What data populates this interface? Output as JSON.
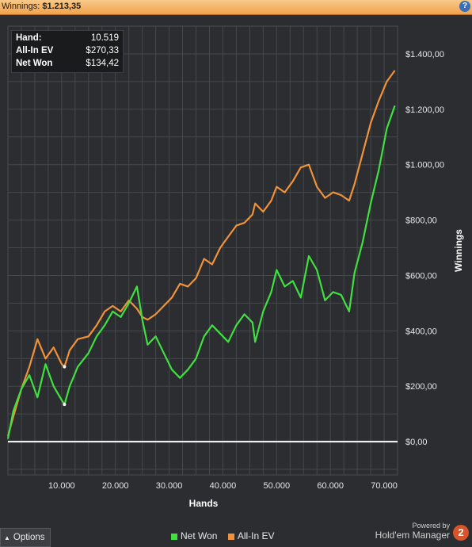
{
  "header": {
    "title_label": "Winnings:",
    "title_value": "$1.213,35",
    "help_icon": "help-icon"
  },
  "tooltip": {
    "rows": [
      {
        "key": "Hand:",
        "value": "10.519"
      },
      {
        "key": "All-In EV",
        "value": "$270,33"
      },
      {
        "key": "Net Won",
        "value": "$134,42"
      }
    ]
  },
  "footer": {
    "options_label": "Options",
    "powered_by": "Powered by",
    "brand_name": "Hold'em Manager",
    "brand_badge": "2"
  },
  "colors": {
    "background": "#2b2d30",
    "grid": "#45484c",
    "net_won": "#3fe03f",
    "all_in_ev": "#f0923a",
    "zero_line": "#ffffff",
    "text": "#e6e6e6"
  },
  "chart_data": {
    "type": "line",
    "xlabel": "Hands",
    "ylabel": "Winnings",
    "xlim": [
      0,
      72500
    ],
    "ylim": [
      -120,
      1500
    ],
    "x_ticks": [
      10000,
      20000,
      30000,
      40000,
      50000,
      60000,
      70000
    ],
    "x_tick_labels": [
      "10.000",
      "20.000",
      "30.000",
      "40.000",
      "50.000",
      "60.000",
      "70.000"
    ],
    "y_ticks": [
      0,
      200,
      400,
      600,
      800,
      1000,
      1200,
      1400
    ],
    "y_tick_labels": [
      "$0,00",
      "$200,00",
      "$400,00",
      "$600,00",
      "$800,00",
      "$1.000,00",
      "$1.200,00",
      "$1.400,00"
    ],
    "grid": true,
    "legend_position": "bottom-center",
    "series": [
      {
        "name": "Net Won",
        "x": [
          0,
          1000,
          2500,
          4000,
          5500,
          7000,
          8500,
          10000,
          10519,
          11500,
          13000,
          15000,
          16500,
          18000,
          19500,
          21000,
          22500,
          24000,
          25000,
          26000,
          27500,
          29000,
          30500,
          32000,
          33500,
          35000,
          36500,
          38000,
          39500,
          41000,
          42500,
          44000,
          45500,
          46000,
          47500,
          49000,
          50000,
          51500,
          53000,
          54500,
          56000,
          57500,
          59000,
          60500,
          62000,
          63500,
          64500,
          66000,
          67500,
          69000,
          70500,
          72000
        ],
        "y": [
          10,
          110,
          190,
          240,
          160,
          280,
          200,
          150,
          134,
          200,
          270,
          320,
          380,
          420,
          470,
          450,
          500,
          560,
          440,
          350,
          380,
          320,
          260,
          230,
          260,
          300,
          380,
          420,
          390,
          360,
          420,
          460,
          430,
          360,
          470,
          540,
          620,
          560,
          580,
          520,
          670,
          620,
          510,
          540,
          530,
          470,
          610,
          720,
          860,
          980,
          1130,
          1213
        ]
      },
      {
        "name": "All-In EV",
        "x": [
          0,
          1000,
          2500,
          4000,
          5500,
          7000,
          8500,
          10000,
          10519,
          11500,
          13000,
          15000,
          16500,
          18000,
          19500,
          21000,
          22500,
          24000,
          25000,
          26000,
          27500,
          29000,
          30500,
          32000,
          33500,
          35000,
          36500,
          38000,
          39500,
          41000,
          42500,
          44000,
          45500,
          46000,
          47500,
          49000,
          50000,
          51500,
          53000,
          54500,
          56000,
          57500,
          59000,
          60500,
          62000,
          63500,
          64500,
          66000,
          67500,
          69000,
          70500,
          72000
        ],
        "y": [
          20,
          90,
          190,
          270,
          370,
          300,
          340,
          280,
          270,
          330,
          370,
          380,
          420,
          470,
          490,
          470,
          510,
          480,
          450,
          440,
          460,
          490,
          520,
          570,
          560,
          590,
          660,
          640,
          700,
          740,
          780,
          790,
          820,
          860,
          830,
          870,
          920,
          900,
          940,
          990,
          1000,
          920,
          880,
          900,
          890,
          870,
          930,
          1040,
          1150,
          1230,
          1300,
          1340
        ]
      }
    ]
  }
}
